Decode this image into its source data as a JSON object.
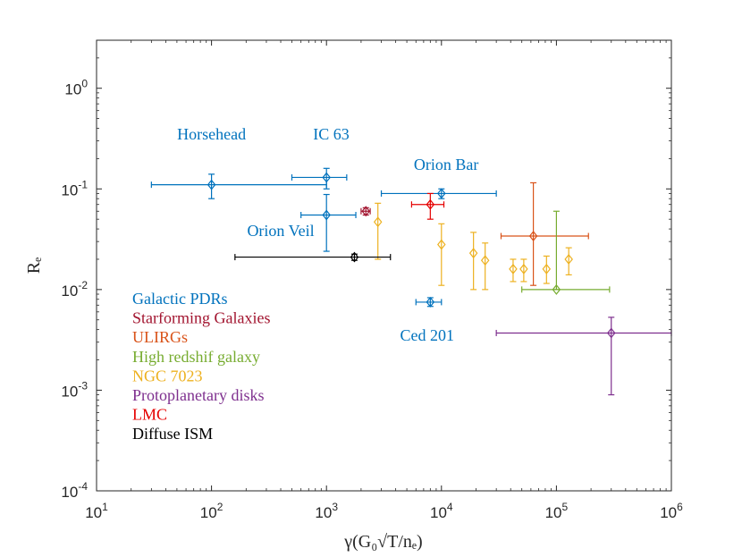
{
  "chart_data": {
    "type": "scatter",
    "xscale": "log",
    "yscale": "log",
    "xlim": [
      10,
      1000000
    ],
    "ylim": [
      0.0001,
      3
    ],
    "xlabel": "γ(G₀√T/nₑ)",
    "ylabel": "Rₑ",
    "xticks": [
      {
        "base": "10",
        "exp": "1",
        "value": 10
      },
      {
        "base": "10",
        "exp": "2",
        "value": 100
      },
      {
        "base": "10",
        "exp": "3",
        "value": 1000
      },
      {
        "base": "10",
        "exp": "4",
        "value": 10000
      },
      {
        "base": "10",
        "exp": "5",
        "value": 100000
      },
      {
        "base": "10",
        "exp": "6",
        "value": 1000000
      }
    ],
    "yticks": [
      {
        "base": "10",
        "exp": "-4",
        "value": 0.0001
      },
      {
        "base": "10",
        "exp": "-3",
        "value": 0.001
      },
      {
        "base": "10",
        "exp": "-2",
        "value": 0.01
      },
      {
        "base": "10",
        "exp": "-1",
        "value": 0.1
      },
      {
        "base": "10",
        "exp": "0",
        "value": 1
      }
    ],
    "series": [
      {
        "name": "Galactic PDRs",
        "color": "#0072bd",
        "points": [
          {
            "x": 100,
            "y": 0.11,
            "xlo": 30,
            "xhi": 1000,
            "ylo": 0.08,
            "yhi": 0.14
          },
          {
            "x": 1000,
            "y": 0.13,
            "xlo": 500,
            "xhi": 1500,
            "ylo": 0.1,
            "yhi": 0.16
          },
          {
            "x": 1000,
            "y": 0.055,
            "xlo": 600,
            "xhi": 1800,
            "ylo": 0.024,
            "yhi": 0.088
          },
          {
            "x": 10000,
            "y": 0.09,
            "xlo": 3000,
            "xhi": 30000,
            "ylo": 0.08,
            "yhi": 0.1
          },
          {
            "x": 8000,
            "y": 0.0075,
            "xlo": 6000,
            "xhi": 10000,
            "ylo": 0.0068,
            "yhi": 0.0083
          }
        ]
      },
      {
        "name": "Starforming Galaxies",
        "color": "#a2142f",
        "points": [
          {
            "x": 2200,
            "y": 0.06,
            "xlo": 2000,
            "xhi": 2400,
            "ylo": 0.055,
            "yhi": 0.065
          }
        ]
      },
      {
        "name": "ULIRGs",
        "color": "#d95319",
        "points": [
          {
            "x": 63000,
            "y": 0.034,
            "xlo": 33000,
            "xhi": 190000,
            "ylo": 0.011,
            "yhi": 0.115
          }
        ]
      },
      {
        "name": "High redshif galaxy",
        "color": "#77ac30",
        "points": [
          {
            "x": 100000,
            "y": 0.01,
            "xlo": 50000,
            "xhi": 290000,
            "ylo": 0.01,
            "yhi": 0.06
          }
        ]
      },
      {
        "name": "NGC 7023",
        "color": "#edb120",
        "points": [
          {
            "x": 2800,
            "y": 0.047,
            "xlo": 2800,
            "xhi": 2800,
            "ylo": 0.02,
            "yhi": 0.072
          },
          {
            "x": 10000,
            "y": 0.028,
            "xlo": 10000,
            "xhi": 10000,
            "ylo": 0.011,
            "yhi": 0.045
          },
          {
            "x": 19000,
            "y": 0.023,
            "xlo": 19000,
            "xhi": 19000,
            "ylo": 0.01,
            "yhi": 0.037
          },
          {
            "x": 24000,
            "y": 0.0195,
            "xlo": 24000,
            "xhi": 24000,
            "ylo": 0.01,
            "yhi": 0.029
          },
          {
            "x": 42000,
            "y": 0.016,
            "xlo": 42000,
            "xhi": 42000,
            "ylo": 0.012,
            "yhi": 0.02
          },
          {
            "x": 52000,
            "y": 0.016,
            "xlo": 52000,
            "xhi": 52000,
            "ylo": 0.012,
            "yhi": 0.02
          },
          {
            "x": 82000,
            "y": 0.016,
            "xlo": 82000,
            "xhi": 82000,
            "ylo": 0.0115,
            "yhi": 0.0215
          },
          {
            "x": 128000,
            "y": 0.02,
            "xlo": 128000,
            "xhi": 128000,
            "ylo": 0.014,
            "yhi": 0.026
          }
        ]
      },
      {
        "name": "Protoplanetary disks",
        "color": "#7e2f8e",
        "points": [
          {
            "x": 300000,
            "y": 0.0037,
            "xlo": 30000,
            "xhi": 1000000,
            "ylo": 0.0009,
            "yhi": 0.0053
          }
        ]
      },
      {
        "name": "LMC",
        "color": "#e50000",
        "points": [
          {
            "x": 8000,
            "y": 0.07,
            "xlo": 5500,
            "xhi": 10500,
            "ylo": 0.05,
            "yhi": 0.09
          }
        ]
      },
      {
        "name": "Diffuse ISM",
        "color": "#000000",
        "points": [
          {
            "x": 1750,
            "y": 0.021,
            "xlo": 160,
            "xhi": 3600,
            "ylo": 0.0195,
            "yhi": 0.0225
          }
        ]
      }
    ],
    "annotations": [
      {
        "text": "Horsehead",
        "x": 100,
        "y": 0.31,
        "color": "#0072bd",
        "anchor": "middle"
      },
      {
        "text": "IC 63",
        "x": 1100,
        "y": 0.31,
        "color": "#0072bd",
        "anchor": "middle"
      },
      {
        "text": "Orion Bar",
        "x": 11000,
        "y": 0.155,
        "color": "#0072bd",
        "anchor": "middle"
      },
      {
        "text": "Orion Veil",
        "x": 400,
        "y": 0.034,
        "color": "#0072bd",
        "anchor": "middle"
      },
      {
        "text": "Ced 201",
        "x": 7500,
        "y": 0.0031,
        "color": "#0072bd",
        "anchor": "middle"
      }
    ],
    "legend": {
      "placement": "lower-left",
      "entries": [
        {
          "text": "Galactic PDRs",
          "color": "#0072bd"
        },
        {
          "text": "Starforming Galaxies",
          "color": "#a2142f"
        },
        {
          "text": "ULIRGs",
          "color": "#d95319"
        },
        {
          "text": "High redshif galaxy",
          "color": "#77ac30"
        },
        {
          "text": "NGC 7023",
          "color": "#edb120"
        },
        {
          "text": "Protoplanetary disks",
          "color": "#7e2f8e"
        },
        {
          "text": "LMC",
          "color": "#e50000"
        },
        {
          "text": "Diffuse ISM",
          "color": "#000000"
        }
      ]
    }
  }
}
